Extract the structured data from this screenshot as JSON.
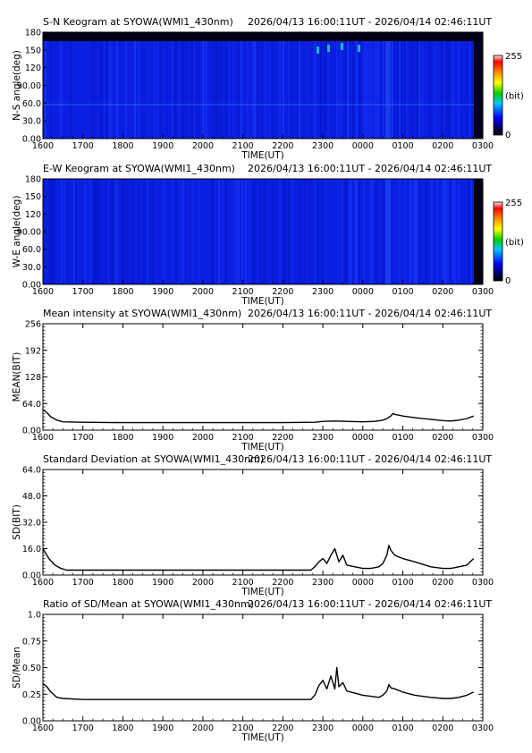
{
  "colors": {
    "keogram_background": "#0a1fe0",
    "keogram_top_band": "#000014",
    "line": "#000000",
    "frame": "#000000"
  },
  "colorbar": {
    "max_label": "255",
    "unit_label": "(bit)",
    "min_label": "0"
  },
  "time_axis": {
    "label": "TIME(UT)",
    "ticks": [
      "1600",
      "1700",
      "1800",
      "1900",
      "2000",
      "2100",
      "2200",
      "2300",
      "0000",
      "0100",
      "0200",
      "0300"
    ],
    "range_hours": [
      0,
      11
    ]
  },
  "chart_data": [
    {
      "type": "heatmap",
      "title": "S-N Keogram at SYOWA(WMI1_430nm)",
      "time_range": "2026/04/13 16:00:11UT - 2026/04/14 02:46:11UT",
      "ylabel": "N-S angle(deg)",
      "xlabel": "TIME(UT)",
      "ylim": [
        0,
        180
      ],
      "yticks": [
        "0.00",
        "30.0",
        "60.0",
        "90.00",
        "120",
        "150",
        "180"
      ],
      "xticks": [
        "1600",
        "1700",
        "1800",
        "1900",
        "2000",
        "2100",
        "2200",
        "2300",
        "0000",
        "0100",
        "0200",
        "0300"
      ],
      "colorbar": [
        "0",
        "(bit)",
        "255"
      ]
    },
    {
      "type": "heatmap",
      "title": "E-W Keogram at SYOWA(WMI1_430nm)",
      "time_range": "2026/04/13 16:00:11UT - 2026/04/14 02:46:11UT",
      "ylabel": "W-E angle(deg)",
      "xlabel": "TIME(UT)",
      "ylim": [
        0,
        180
      ],
      "yticks": [
        "0.00",
        "30.0",
        "60.0",
        "90.00",
        "120",
        "150",
        "180"
      ],
      "xticks": [
        "1600",
        "1700",
        "1800",
        "1900",
        "2000",
        "2100",
        "2200",
        "2300",
        "0000",
        "0100",
        "0200",
        "0300"
      ],
      "colorbar": [
        "0",
        "(bit)",
        "255"
      ]
    },
    {
      "type": "line",
      "title": "Mean intensity at SYOWA(WMI1_430nm)",
      "time_range": "2026/04/13 16:00:11UT - 2026/04/14 02:46:11UT",
      "ylabel": "MEAN(BIT)",
      "xlabel": "TIME(UT)",
      "ylim": [
        0,
        256
      ],
      "yticks": [
        "0.00",
        "64.0",
        "128",
        "192",
        "256"
      ],
      "xticks": [
        "1600",
        "1700",
        "1800",
        "1900",
        "2000",
        "2100",
        "2200",
        "2300",
        "0000",
        "0100",
        "0200",
        "0300"
      ],
      "x": [
        16.0,
        16.1,
        16.2,
        16.35,
        16.5,
        17.0,
        18.0,
        19.0,
        20.0,
        21.0,
        22.0,
        22.8,
        23.0,
        23.3,
        23.6,
        24.0,
        24.3,
        24.5,
        24.6,
        24.7,
        24.75,
        24.8,
        25.0,
        25.3,
        25.7,
        26.0,
        26.2,
        26.4,
        26.6,
        26.77
      ],
      "y": [
        50,
        42,
        32,
        24,
        20,
        19,
        18,
        18,
        18,
        18,
        18,
        19,
        21,
        22,
        21,
        20,
        21,
        24,
        28,
        34,
        40,
        38,
        34,
        30,
        26,
        23,
        22,
        24,
        28,
        34
      ]
    },
    {
      "type": "line",
      "title": "Standard Deviation at SYOWA(WMI1_430nm)",
      "time_range": "2026/04/13 16:00:11UT - 2026/04/14 02:46:11UT",
      "ylabel": "SD(BIT)",
      "xlabel": "TIME(UT)",
      "ylim": [
        0,
        64
      ],
      "yticks": [
        "0.00",
        "16.0",
        "32.0",
        "48.0",
        "64.0"
      ],
      "xticks": [
        "1600",
        "1700",
        "1800",
        "1900",
        "2000",
        "2100",
        "2200",
        "2300",
        "0000",
        "0100",
        "0200",
        "0300"
      ],
      "x": [
        16.0,
        16.05,
        16.15,
        16.3,
        16.45,
        16.6,
        17.0,
        18.0,
        19.0,
        20.0,
        21.0,
        22.0,
        22.7,
        22.8,
        22.9,
        23.0,
        23.1,
        23.2,
        23.3,
        23.4,
        23.5,
        23.6,
        23.8,
        24.0,
        24.2,
        24.4,
        24.5,
        24.6,
        24.65,
        24.7,
        24.8,
        25.0,
        25.3,
        25.7,
        26.0,
        26.2,
        26.4,
        26.6,
        26.77
      ],
      "y": [
        16,
        14,
        10,
        6,
        4,
        3,
        3,
        3,
        3,
        3,
        3,
        3,
        3,
        5,
        8,
        10,
        7,
        12,
        16,
        8,
        12,
        6,
        5,
        4,
        4,
        5,
        7,
        12,
        18,
        15,
        12,
        10,
        8,
        5,
        4,
        4,
        5,
        6,
        10
      ]
    },
    {
      "type": "line",
      "title": "Ratio of SD/Mean at SYOWA(WMI1_430nm)",
      "time_range": "2026/04/13 16:00:11UT - 2026/04/14 02:46:11UT",
      "ylabel": "SD/Mean",
      "xlabel": "TIME(UT)",
      "ylim": [
        0,
        1
      ],
      "yticks": [
        "0.00",
        "0.25",
        "0.50",
        "0.75",
        "1.0"
      ],
      "xticks": [
        "1600",
        "1700",
        "1800",
        "1900",
        "2000",
        "2100",
        "2200",
        "2300",
        "0000",
        "0100",
        "0200",
        "0300"
      ],
      "x": [
        16.0,
        16.1,
        16.2,
        16.35,
        16.5,
        17.0,
        18.0,
        19.0,
        20.0,
        21.0,
        22.0,
        22.7,
        22.8,
        22.9,
        23.0,
        23.1,
        23.2,
        23.3,
        23.35,
        23.4,
        23.5,
        23.6,
        23.8,
        24.0,
        24.2,
        24.4,
        24.5,
        24.6,
        24.65,
        24.7,
        24.8,
        25.0,
        25.3,
        25.7,
        26.0,
        26.2,
        26.4,
        26.6,
        26.77
      ],
      "y": [
        0.35,
        0.32,
        0.27,
        0.22,
        0.21,
        0.2,
        0.2,
        0.2,
        0.2,
        0.2,
        0.2,
        0.2,
        0.24,
        0.33,
        0.38,
        0.3,
        0.42,
        0.3,
        0.5,
        0.32,
        0.36,
        0.28,
        0.26,
        0.24,
        0.23,
        0.22,
        0.24,
        0.28,
        0.34,
        0.31,
        0.3,
        0.27,
        0.24,
        0.22,
        0.21,
        0.21,
        0.22,
        0.24,
        0.27
      ]
    }
  ]
}
